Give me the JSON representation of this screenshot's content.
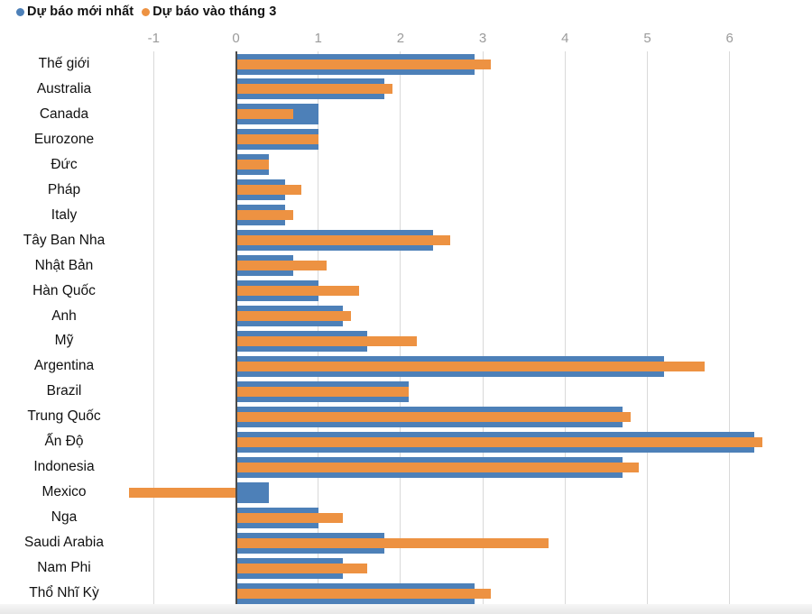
{
  "legend": {
    "series1_label": "Dự báo mới nhất",
    "series2_label": "Dự báo vào tháng 3"
  },
  "colors": {
    "series1": "#4d80b8",
    "series2": "#ed9242",
    "gridline": "#d9d9d9",
    "zero_line": "#4a4a4a",
    "axis_label": "#9b9b9b",
    "text": "#111111"
  },
  "chart_data": {
    "type": "bar",
    "orientation": "horizontal",
    "title": "",
    "categories": [
      "Thế giới",
      "Australia",
      "Canada",
      "Eurozone",
      "Đức",
      "Pháp",
      "Italy",
      "Tây Ban Nha",
      "Nhật Bản",
      "Hàn Quốc",
      "Anh",
      "Mỹ",
      "Argentina",
      "Brazil",
      "Trung Quốc",
      "Ấn Độ",
      "Indonesia",
      "Mexico",
      "Nga",
      "Saudi Arabia",
      "Nam Phi",
      "Thổ Nhĩ Kỳ"
    ],
    "series": [
      {
        "name": "Dự báo mới nhất",
        "color": "#4d80b8",
        "values": [
          2.9,
          1.8,
          1.0,
          1.0,
          0.4,
          0.6,
          0.6,
          2.4,
          0.7,
          1.0,
          1.3,
          1.6,
          5.2,
          2.1,
          4.7,
          6.3,
          4.7,
          0.4,
          1.0,
          1.8,
          1.3,
          2.9
        ]
      },
      {
        "name": "Dự báo vào tháng 3",
        "color": "#ed9242",
        "values": [
          3.1,
          1.9,
          0.7,
          1.0,
          0.4,
          0.8,
          0.7,
          2.6,
          1.1,
          1.5,
          1.4,
          2.2,
          5.7,
          2.1,
          4.8,
          6.4,
          4.9,
          -1.3,
          1.3,
          3.8,
          1.6,
          3.1
        ]
      }
    ],
    "x_ticks": [
      -1,
      0,
      1,
      2,
      3,
      4,
      5,
      6
    ],
    "xlim": [
      -1.35,
      7.0
    ],
    "grid": "vertical-gridlines",
    "legend_position": "top-left",
    "bar_style": "overlay-bullet"
  }
}
